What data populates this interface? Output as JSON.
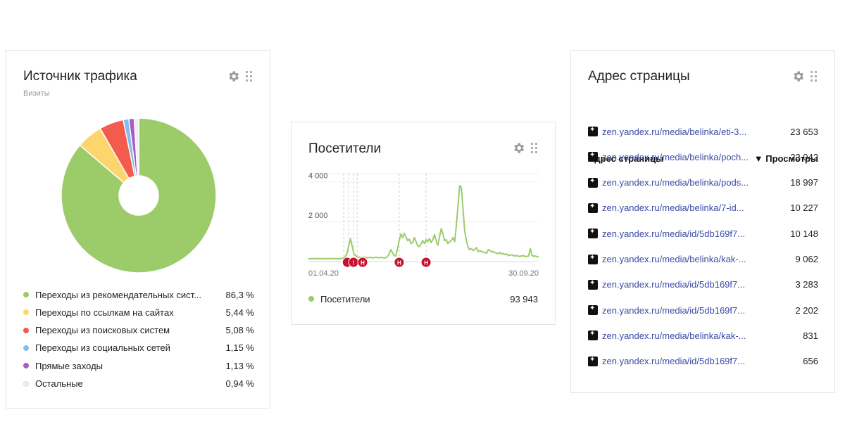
{
  "traffic": {
    "title": "Источник трафика",
    "subtitle": "Визиты",
    "legend": [
      {
        "label": "Переходы из рекомендательных сист...",
        "value": "86,3 %",
        "pct": 86.3,
        "color": "#9ccc6a"
      },
      {
        "label": "Переходы по ссылкам на сайтах",
        "value": "5,44 %",
        "pct": 5.44,
        "color": "#fcd66c"
      },
      {
        "label": "Переходы из поисковых систем",
        "value": "5,08 %",
        "pct": 5.08,
        "color": "#f35b4d"
      },
      {
        "label": "Переходы из социальных сетей",
        "value": "1,15 %",
        "pct": 1.15,
        "color": "#85bdea"
      },
      {
        "label": "Прямые заходы",
        "value": "1,13 %",
        "pct": 1.13,
        "color": "#a95cc4"
      },
      {
        "label": "Остальные",
        "value": "0,94 %",
        "pct": 0.94,
        "color": "#eeeeee"
      }
    ]
  },
  "visitors": {
    "title": "Посетители",
    "legend_label": "Посетители",
    "legend_value": "93 943",
    "line_color": "#9ccc6a",
    "marker_color": "#c8102e",
    "markers": [
      "!",
      "H",
      "H",
      "H"
    ]
  },
  "pages": {
    "title": "Адрес страницы",
    "col_url": "Адрес страницы",
    "col_views": "▼ Просмотры",
    "rows": [
      {
        "url": "zen.yandex.ru/media/belinka/eti-3...",
        "views": "23 653"
      },
      {
        "url": "zen.yandex.ru/media/belinka/poch...",
        "views": "23 042"
      },
      {
        "url": "zen.yandex.ru/media/belinka/pods...",
        "views": "18 997"
      },
      {
        "url": "zen.yandex.ru/media/belinka/7-id...",
        "views": "10 227"
      },
      {
        "url": "zen.yandex.ru/media/id/5db169f7...",
        "views": "10 148"
      },
      {
        "url": "zen.yandex.ru/media/belinka/kak-...",
        "views": "9 062"
      },
      {
        "url": "zen.yandex.ru/media/id/5db169f7...",
        "views": "3 283"
      },
      {
        "url": "zen.yandex.ru/media/id/5db169f7...",
        "views": "2 202"
      },
      {
        "url": "zen.yandex.ru/media/belinka/kak-...",
        "views": "831"
      },
      {
        "url": "zen.yandex.ru/media/id/5db169f7...",
        "views": "656"
      }
    ]
  },
  "chart_data": [
    {
      "type": "pie",
      "title": "Источник трафика",
      "subtitle": "Визиты",
      "categories": [
        "Переходы из рекомендательных сист...",
        "Переходы по ссылкам на сайтах",
        "Переходы из поисковых систем",
        "Переходы из социальных сетей",
        "Прямые заходы",
        "Остальные"
      ],
      "values": [
        86.3,
        5.44,
        5.08,
        1.15,
        1.13,
        0.94
      ]
    },
    {
      "type": "line",
      "title": "Посетители",
      "ylim": [
        0,
        4400
      ],
      "yticks": [
        "2 000",
        "4 000"
      ],
      "xticks": [
        "01.04.20",
        "30.09.20"
      ],
      "grid": true,
      "series": [
        {
          "name": "Посетители",
          "values": [
            150,
            140,
            150,
            145,
            150,
            140,
            155,
            150,
            145,
            150,
            140,
            150,
            145,
            150,
            155,
            150,
            145,
            150,
            140,
            150,
            160,
            190,
            260,
            420,
            820,
            1150,
            780,
            420,
            300,
            240,
            220,
            210,
            200,
            220,
            210,
            190,
            200,
            210,
            180,
            200,
            220,
            200,
            190,
            210,
            200,
            180,
            190,
            250,
            380,
            600,
            450,
            300,
            280,
            640,
            1050,
            1380,
            1200,
            1420,
            1250,
            1050,
            1120,
            900,
            950,
            1200,
            1000,
            800,
            750,
            880,
            1050,
            900,
            1100,
            1000,
            1150,
            950,
            1100,
            1350,
            1050,
            820,
            1250,
            1650,
            1400,
            1050,
            1100,
            900,
            1000,
            1050,
            1200,
            1000,
            1800,
            2800,
            3800,
            3700,
            2600,
            1500,
            1050,
            700,
            600,
            650,
            550,
            600,
            700,
            500,
            550,
            500,
            480,
            450,
            420,
            600,
            550,
            480,
            500,
            450,
            420,
            400,
            450,
            380,
            400,
            350,
            380,
            300,
            320,
            350,
            300,
            280,
            300,
            260,
            270,
            280,
            300,
            250,
            260,
            280,
            650,
            320,
            260,
            280,
            250,
            240
          ]
        }
      ]
    }
  ]
}
